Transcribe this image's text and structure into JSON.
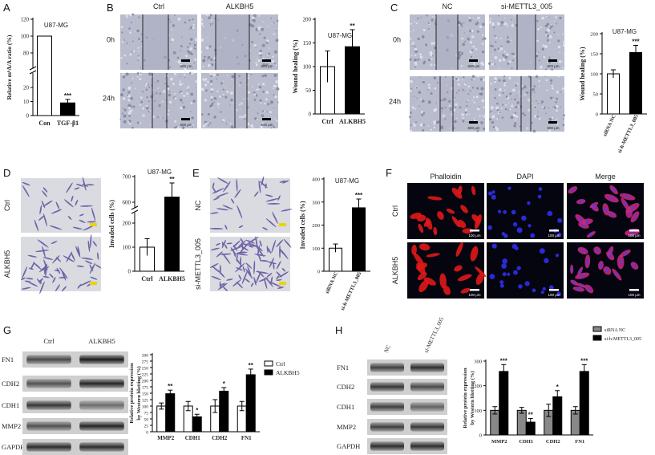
{
  "panels": {
    "A": {
      "letter": "A",
      "title": "U87-MG",
      "chart_data": {
        "type": "bar",
        "ylabel": "Relative m⁶A/A ratio (%)",
        "categories": [
          "Con",
          "TGF-β1"
        ],
        "values": [
          100,
          9
        ],
        "errors": [
          0,
          2.5
        ],
        "significance": [
          "",
          "***"
        ],
        "ylim": [
          0,
          120
        ],
        "yticks": [
          "0",
          "10",
          "20",
          "80",
          "100",
          "120"
        ],
        "broken_axis": true,
        "bar_colors": [
          "#ffffff",
          "#000000"
        ]
      }
    },
    "B": {
      "letter": "B",
      "col_labels": [
        "Ctrl",
        "ALKBH5"
      ],
      "row_labels": [
        "0h",
        "24h"
      ],
      "scale_label": "600 μm",
      "chart_title": "U87-MG",
      "chart_data": {
        "type": "bar",
        "ylabel": "Wound healing (%)",
        "categories": [
          "Ctrl",
          "ALKBH5"
        ],
        "values": [
          100,
          142
        ],
        "errors": [
          33,
          36
        ],
        "significance": [
          "",
          "**"
        ],
        "ylim": [
          0,
          200
        ],
        "yticks": [
          "0",
          "50",
          "100",
          "150",
          "200"
        ],
        "bar_colors": [
          "#ffffff",
          "#000000"
        ]
      }
    },
    "C": {
      "letter": "C",
      "col_labels": [
        "NC",
        "si-METTL3_005"
      ],
      "row_labels": [
        "0h",
        "24h"
      ],
      "scale_label": "600 μm",
      "chart_title": "U87-MG",
      "chart_data": {
        "type": "bar",
        "ylabel": "Wound healing (%)",
        "categories": [
          "siRNA NC",
          "si-h-METTL3_005"
        ],
        "values": [
          100,
          153
        ],
        "errors": [
          10,
          18
        ],
        "significance": [
          "",
          "***"
        ],
        "ylim": [
          0,
          200
        ],
        "yticks": [
          "0",
          "50",
          "100",
          "150",
          "200"
        ],
        "bar_colors": [
          "#ffffff",
          "#000000"
        ]
      }
    },
    "D": {
      "letter": "D",
      "row_labels": [
        "Ctrl",
        "ALKBH5"
      ],
      "scale_label": "100 μm",
      "chart_title": "U87-MG",
      "chart_data": {
        "type": "bar",
        "ylabel": "Invaded cells (%)",
        "categories": [
          "Ctrl",
          "ALKBH5"
        ],
        "values": [
          100,
          620
        ],
        "errors": [
          35,
          55
        ],
        "significance": [
          "",
          "**"
        ],
        "ylim": [
          0,
          700
        ],
        "yticks": [
          "0",
          "100",
          "200",
          "600",
          "700"
        ],
        "broken_axis": true,
        "bar_colors": [
          "#ffffff",
          "#000000"
        ]
      }
    },
    "E": {
      "letter": "E",
      "row_labels": [
        "NC",
        "si-METTL3_005"
      ],
      "scale_label": "100 μm",
      "chart_title": "U87-MG",
      "chart_data": {
        "type": "bar",
        "ylabel": "Invaded cells (%)",
        "categories": [
          "siRNA NC",
          "si-h-METTL3_005"
        ],
        "values": [
          100,
          275
        ],
        "errors": [
          18,
          38
        ],
        "significance": [
          "",
          "***"
        ],
        "ylim": [
          0,
          400
        ],
        "yticks": [
          "0",
          "100",
          "200",
          "300",
          "400"
        ],
        "bar_colors": [
          "#ffffff",
          "#000000"
        ]
      }
    },
    "F": {
      "letter": "F",
      "col_labels": [
        "Phalloidin",
        "DAPI",
        "Merge"
      ],
      "row_labels": [
        "Ctrl",
        "ALKBH5"
      ],
      "scale_label": "100 μm"
    },
    "G": {
      "letter": "G",
      "blot_col_labels": [
        "Ctrl",
        "ALKBH5"
      ],
      "blot_row_labels": [
        "FN1",
        "CDH2",
        "CDH1",
        "MMP2",
        "GAPDH"
      ],
      "chart_data": {
        "type": "bar",
        "ylabel": "Relative protein expression\nby Western blotting (%)",
        "categories": [
          "MMP2",
          "CDH1",
          "CDH2",
          "FN1"
        ],
        "series": [
          {
            "name": "Ctrl",
            "values": [
              100,
              100,
              100,
              100
            ],
            "errors": [
              12,
              18,
              25,
              18
            ],
            "color": "#ffffff"
          },
          {
            "name": "ALKBH5",
            "values": [
              148,
              58,
              158,
              222
            ],
            "errors": [
              14,
              10,
              14,
              22
            ],
            "color": "#000000"
          }
        ],
        "significance": [
          "**",
          "*",
          "*",
          "**"
        ],
        "ylim": [
          0,
          300
        ],
        "yticks": [
          "0",
          "25",
          "50",
          "75",
          "100",
          "125",
          "150",
          "175",
          "200",
          "225",
          "250",
          "275",
          "300"
        ],
        "legend": "top-right"
      }
    },
    "H": {
      "letter": "H",
      "blot_col_labels": [
        "NC",
        "si-METTL3_005"
      ],
      "blot_row_labels": [
        "FN1",
        "CDH2",
        "CDH1",
        "MMP2",
        "GAPDH"
      ],
      "chart_data": {
        "type": "bar",
        "ylabel": "Relative protein expression\nby Western blotting (%)",
        "categories": [
          "MMP2",
          "CDH1",
          "CDH2",
          "FN1"
        ],
        "series": [
          {
            "name": "siRNA NC",
            "values": [
              100,
              100,
              100,
              100
            ],
            "errors": [
              15,
              12,
              25,
              15
            ],
            "color": "#888888"
          },
          {
            "name": "si-h-METTL3_005",
            "values": [
              258,
              52,
              155,
              258
            ],
            "errors": [
              28,
              15,
              25,
              28
            ],
            "color": "#000000"
          }
        ],
        "significance": [
          "***",
          "**",
          "*",
          "***"
        ],
        "ylim": [
          0,
          300
        ],
        "yticks": [
          "0",
          "100",
          "200",
          "300"
        ],
        "legend": "top-right"
      }
    }
  },
  "colors": {
    "brightfield": "#b9bccd",
    "brightfield_dark": "#7d8198",
    "stain_bg": "#dadbe0",
    "stain_cell": "#6f63a7",
    "phalloidin": "#e01818",
    "dapi": "#2a2ad8",
    "merge": "#c02880",
    "blot_bg": "#cfcfcf",
    "blot_band": "#2b2b2b"
  }
}
